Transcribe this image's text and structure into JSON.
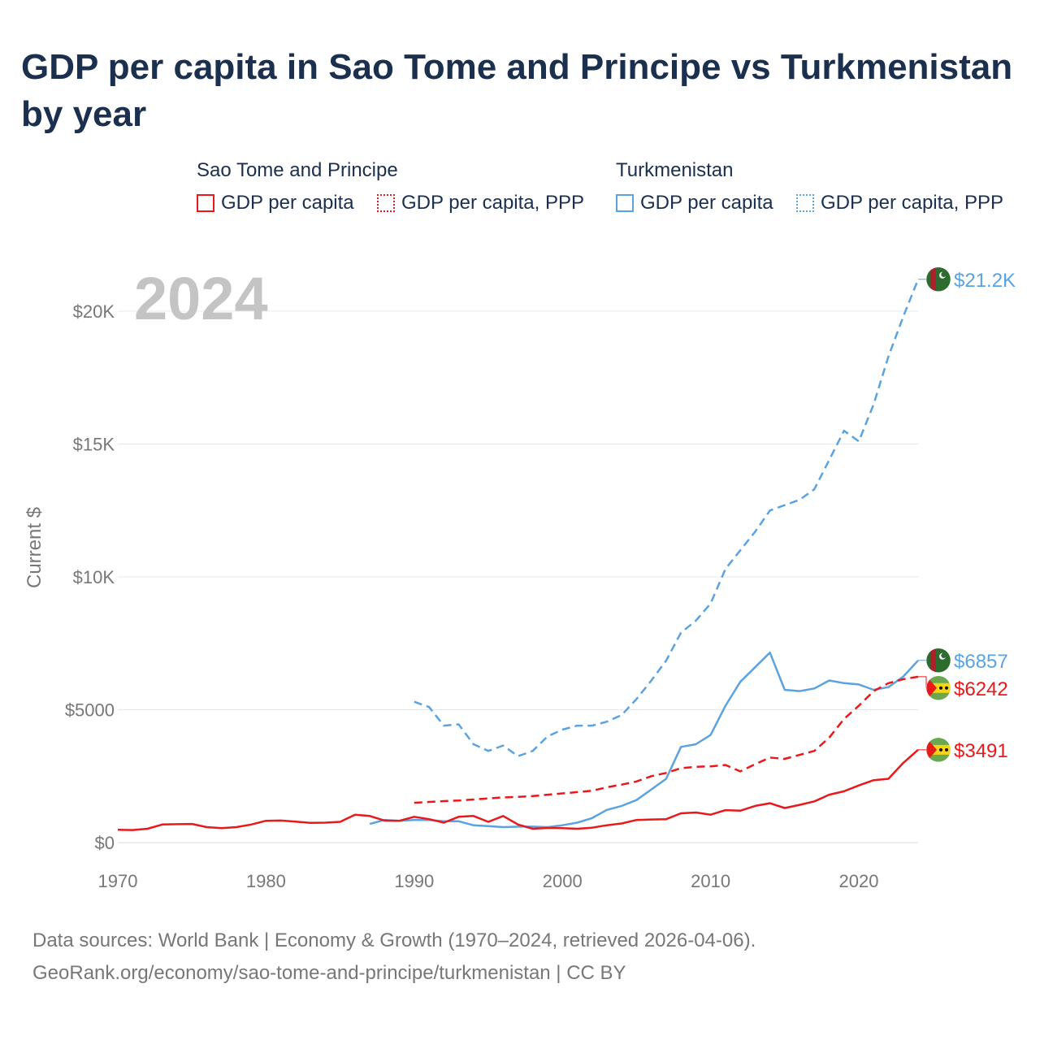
{
  "title": "GDP per capita in Sao Tome and Principe vs Turkmenistan by year",
  "legend": {
    "groups": [
      {
        "name": "Sao Tome and Principe",
        "color": "#e8191b",
        "items": [
          {
            "label": "GDP per capita",
            "style": "solid"
          },
          {
            "label": "GDP per capita, PPP",
            "style": "dotted"
          }
        ]
      },
      {
        "name": "Turkmenistan",
        "color": "#5ba3e0",
        "items": [
          {
            "label": "GDP per capita",
            "style": "solid"
          },
          {
            "label": "GDP per capita, PPP",
            "style": "dotted"
          }
        ]
      }
    ]
  },
  "footer": {
    "line1": "Data sources: World Bank | Economy & Growth (1970–2024, retrieved 2026-04-06).",
    "line2": "GeoRank.org/economy/sao-tome-and-principe/turkmenistan | CC BY"
  },
  "chart_data": {
    "type": "line",
    "title": "GDP per capita in Sao Tome and Principe vs Turkmenistan by year",
    "year_label": "2024",
    "ylabel": "Current $",
    "xlim": [
      1970,
      2024
    ],
    "ylim": [
      0,
      22000
    ],
    "xticks": [
      1970,
      1980,
      1990,
      2000,
      2010,
      2020
    ],
    "yticks": [
      {
        "value": 0,
        "label": "$0"
      },
      {
        "value": 5000,
        "label": "$5000"
      },
      {
        "value": 10000,
        "label": "$10K"
      },
      {
        "value": 15000,
        "label": "$15K"
      },
      {
        "value": 20000,
        "label": "$20K"
      }
    ],
    "grid": true,
    "series": [
      {
        "id": "tkm-ppp",
        "name": "Turkmenistan GDP per capita, PPP",
        "country": "Turkmenistan",
        "color": "#5ba3e0",
        "dash": true,
        "end_label": "$21.2K",
        "flag": "turkmenistan",
        "x": [
          1990,
          1991,
          1992,
          1993,
          1994,
          1995,
          1996,
          1997,
          1998,
          1999,
          2000,
          2001,
          2002,
          2003,
          2004,
          2005,
          2006,
          2007,
          2008,
          2009,
          2010,
          2011,
          2012,
          2013,
          2014,
          2015,
          2016,
          2017,
          2018,
          2019,
          2020,
          2021,
          2022,
          2023,
          2024
        ],
        "y": [
          5300,
          5100,
          4400,
          4450,
          3700,
          3450,
          3650,
          3250,
          3450,
          4000,
          4250,
          4400,
          4400,
          4550,
          4800,
          5400,
          6100,
          6850,
          7900,
          8350,
          9000,
          10300,
          11000,
          11700,
          12500,
          12700,
          12900,
          13300,
          14400,
          15500,
          15100,
          16500,
          18300,
          19800,
          21200
        ]
      },
      {
        "id": "tkm-gdp",
        "name": "Turkmenistan GDP per capita",
        "country": "Turkmenistan",
        "color": "#5ba3e0",
        "dash": false,
        "end_label": "$6857",
        "flag": "turkmenistan",
        "x": [
          1987,
          1988,
          1989,
          1990,
          1991,
          1992,
          1993,
          1994,
          1995,
          1996,
          1997,
          1998,
          1999,
          2000,
          2001,
          2002,
          2003,
          2004,
          2005,
          2006,
          2007,
          2008,
          2009,
          2010,
          2011,
          2012,
          2013,
          2014,
          2015,
          2016,
          2017,
          2018,
          2019,
          2020,
          2021,
          2022,
          2023,
          2024
        ],
        "y": [
          700,
          850,
          820,
          850,
          850,
          800,
          800,
          650,
          620,
          580,
          600,
          600,
          580,
          650,
          750,
          920,
          1230,
          1380,
          1600,
          2000,
          2400,
          3600,
          3700,
          4050,
          5150,
          6050,
          6600,
          7150,
          5750,
          5700,
          5800,
          6100,
          6000,
          5950,
          5750,
          5850,
          6250,
          6857
        ]
      },
      {
        "id": "stp-ppp",
        "name": "Sao Tome and Principe GDP per capita, PPP",
        "country": "Sao Tome and Principe",
        "color": "#e8191b",
        "dash": true,
        "end_label": "$6242",
        "flag": "sao-tome",
        "x": [
          1990,
          1991,
          1992,
          1993,
          1994,
          1995,
          1996,
          1997,
          1998,
          1999,
          2000,
          2001,
          2002,
          2003,
          2004,
          2005,
          2006,
          2007,
          2008,
          2009,
          2010,
          2011,
          2012,
          2013,
          2014,
          2015,
          2016,
          2017,
          2018,
          2019,
          2020,
          2021,
          2022,
          2023,
          2024
        ],
        "y": [
          1500,
          1530,
          1560,
          1580,
          1620,
          1660,
          1700,
          1720,
          1750,
          1800,
          1850,
          1900,
          1950,
          2080,
          2180,
          2300,
          2500,
          2620,
          2800,
          2850,
          2870,
          2920,
          2680,
          2950,
          3200,
          3150,
          3300,
          3450,
          3950,
          4650,
          5150,
          5700,
          6000,
          6150,
          6242
        ]
      },
      {
        "id": "stp-gdp",
        "name": "Sao Tome and Principe GDP per capita",
        "country": "Sao Tome and Principe",
        "color": "#e8191b",
        "dash": false,
        "end_label": "$3491",
        "flag": "sao-tome",
        "x": [
          1970,
          1971,
          1972,
          1973,
          1974,
          1975,
          1976,
          1977,
          1978,
          1979,
          1980,
          1981,
          1982,
          1983,
          1984,
          1985,
          1986,
          1987,
          1988,
          1989,
          1990,
          1991,
          1992,
          1993,
          1994,
          1995,
          1996,
          1997,
          1998,
          1999,
          2000,
          2001,
          2002,
          2003,
          2004,
          2005,
          2006,
          2007,
          2008,
          2009,
          2010,
          2011,
          2012,
          2013,
          2014,
          2015,
          2016,
          2017,
          2018,
          2019,
          2020,
          2021,
          2022,
          2023,
          2024
        ],
        "y": [
          480,
          470,
          520,
          680,
          690,
          700,
          580,
          540,
          580,
          680,
          820,
          830,
          790,
          740,
          750,
          780,
          1050,
          1000,
          830,
          820,
          970,
          880,
          750,
          970,
          1000,
          780,
          1000,
          680,
          520,
          550,
          540,
          520,
          560,
          650,
          720,
          850,
          870,
          880,
          1100,
          1130,
          1050,
          1220,
          1200,
          1380,
          1480,
          1300,
          1420,
          1550,
          1800,
          1930,
          2150,
          2350,
          2400,
          3000,
          3491
        ]
      }
    ]
  }
}
